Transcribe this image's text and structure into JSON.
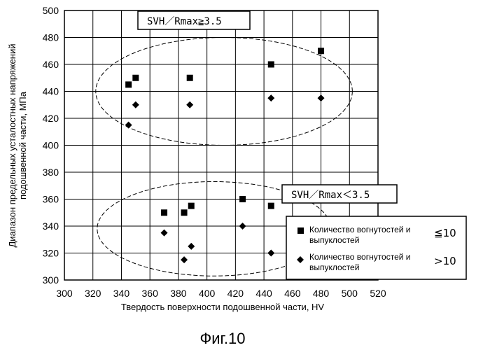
{
  "chart_data": {
    "type": "scatter",
    "title": "",
    "xlabel": "Твердость поверхности подошвенной части, HV",
    "ylabel": "Диапазон предельных усталостных напряжений подошвенной части, МПа",
    "xlim": [
      300,
      520
    ],
    "ylim": [
      300,
      500
    ],
    "x_ticks": [
      "300",
      "320",
      "340",
      "360",
      "380",
      "400",
      "420",
      "440",
      "460",
      "480",
      "500",
      "520"
    ],
    "y_ticks": [
      "300",
      "320",
      "340",
      "360",
      "380",
      "400",
      "420",
      "440",
      "460",
      "480",
      "500"
    ],
    "grid": true,
    "legend_position": "lower-right",
    "series": [
      {
        "name": "Количество вогнутостей и выпуклостей",
        "condition": "≦10",
        "marker": "square",
        "points": [
          {
            "x": 345,
            "y": 445
          },
          {
            "x": 350,
            "y": 450
          },
          {
            "x": 388,
            "y": 450
          },
          {
            "x": 445,
            "y": 460
          },
          {
            "x": 480,
            "y": 470
          },
          {
            "x": 370,
            "y": 350
          },
          {
            "x": 384,
            "y": 350
          },
          {
            "x": 389,
            "y": 355
          },
          {
            "x": 425,
            "y": 360
          },
          {
            "x": 445,
            "y": 355
          }
        ]
      },
      {
        "name": "Количество вогнутостей и выпуклостей",
        "condition": ">10",
        "marker": "diamond",
        "points": [
          {
            "x": 345,
            "y": 415
          },
          {
            "x": 350,
            "y": 430
          },
          {
            "x": 388,
            "y": 430
          },
          {
            "x": 445,
            "y": 435
          },
          {
            "x": 480,
            "y": 435
          },
          {
            "x": 370,
            "y": 335
          },
          {
            "x": 384,
            "y": 315
          },
          {
            "x": 389,
            "y": 325
          },
          {
            "x": 425,
            "y": 340
          },
          {
            "x": 445,
            "y": 320
          }
        ]
      }
    ],
    "annotations": [
      {
        "text": "SVH／Rmax≧3.5",
        "group": "upper"
      },
      {
        "text": "SVH／Rmax＜3.5",
        "group": "lower"
      }
    ],
    "groups": [
      {
        "name": "upper",
        "cx": 412,
        "cy": 440,
        "rx": 90,
        "ry": 40
      },
      {
        "name": "lower",
        "cx": 405,
        "cy": 338,
        "rx": 82,
        "ry": 35
      }
    ]
  },
  "figure_caption": "Фиг.10",
  "colors": {
    "marker": "#000000",
    "grid": "#000000",
    "background": "#ffffff"
  }
}
